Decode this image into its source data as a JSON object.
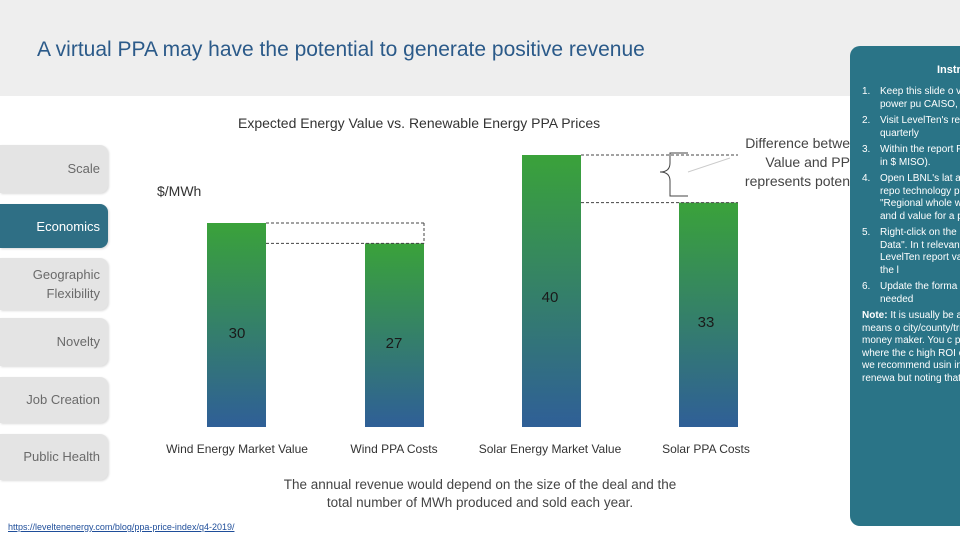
{
  "slide": {
    "title": "A virtual PPA may have the potential to generate positive revenue",
    "chart_title": "Expected Energy Value vs. Renewable Energy PPA Prices",
    "unit_label": "$/MWh",
    "callout": [
      "Difference betwe",
      "Value and PP",
      "represents poten"
    ],
    "footnote": "The annual revenue would depend on the size of the deal and the total number of MWh produced and sold each year.",
    "source": "https://leveltenenergy.com/blog/ppa-price-index/q4-2019/"
  },
  "sidebar": {
    "tabs": [
      {
        "label": [
          "Scale"
        ],
        "active": false
      },
      {
        "label": [
          "Economics"
        ],
        "active": true
      },
      {
        "label": [
          "Geographic",
          "Flexibility"
        ],
        "active": false
      },
      {
        "label": [
          "Novelty"
        ],
        "active": false
      },
      {
        "label": [
          "Job Creation"
        ],
        "active": false
      },
      {
        "label": [
          "Public Health"
        ],
        "active": false
      }
    ]
  },
  "instructions": {
    "header": "Instr",
    "items": [
      {
        "num": "1.",
        "text": "Keep this slide o virtual power pu CAISO, ERCOT"
      },
      {
        "num": "2.",
        "text": "Visit LevelTen's recent quarterly"
      },
      {
        "num": "3.",
        "text": "Within the report PPA quotes in $ MISO)."
      },
      {
        "num": "4.",
        "text": "Open LBNL's lat and/or solar repo technology prefe \"Regional whole wind/solar and d value for a projec"
      },
      {
        "num": "5.",
        "text": "Right-click on the Excel Data\". In t relevant wind/so LevelTen report values from the l"
      },
      {
        "num": "6.",
        "text": "Update the forma chart as needed"
      }
    ],
    "note_label": "Note:",
    "note": "It is usually be as the best means o city/county/tribe's re money maker. You c position where the c high ROI or payback we recommend usin indicate that renewa but noting that mark"
  },
  "colors": {
    "green": "#3aa23a",
    "blue": "#2f5f97",
    "panel": "#2a7487",
    "title": "#2b5a89"
  },
  "chart_data": {
    "type": "bar",
    "title": "Expected Energy Value vs. Renewable Energy PPA Prices",
    "ylabel": "$/MWh",
    "ylim": [
      0,
      50
    ],
    "categories": [
      "Wind Energy Market Value",
      "Wind PPA Costs",
      "Solar Energy Market Value",
      "Solar PPA Costs"
    ],
    "values": [
      30,
      27,
      40,
      33
    ],
    "value_labels": [
      "30",
      "27",
      "40",
      "33"
    ],
    "annotation": "Difference between Value and PPA represents potential revenue"
  }
}
